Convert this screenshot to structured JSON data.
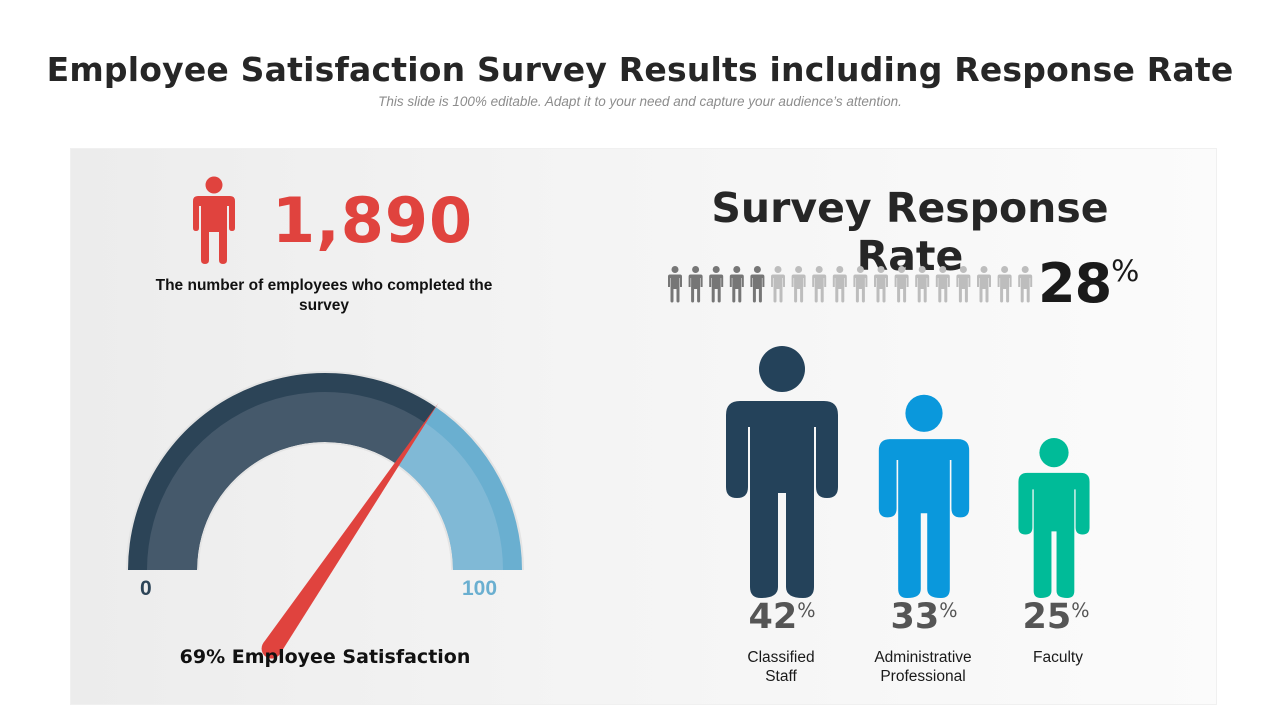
{
  "header": {
    "title": "Employee Satisfaction Survey Results including Response Rate",
    "subtitle": "This slide is 100% editable. Adapt it to your need and capture your audience’s attention."
  },
  "completed": {
    "count": "1,890",
    "label": "The number of employees who completed the survey",
    "icon": "person-icon",
    "color": "#e0433e"
  },
  "colors": {
    "gauge_dark": "#2c4457",
    "gauge_light": "#6aafd0",
    "needle": "#e0433e",
    "icon_active": "#767676",
    "icon_inactive": "#bdbdbd",
    "classified_staff": "#24425a",
    "administrative_professional": "#0a98dc",
    "faculty": "#00bb98"
  },
  "chart_data": [
    {
      "type": "gauge",
      "min_label": "0",
      "max_label": "100",
      "range": [
        0,
        100
      ],
      "value": 69,
      "label": "69% Employee Satisfaction"
    },
    {
      "type": "pictograph",
      "title": "Survey Response Rate",
      "value": 28,
      "value_text": "28",
      "unit": "%",
      "total_icons": 18,
      "filled_icons": 5
    },
    {
      "type": "pictograph-bar",
      "categories": [
        "Classified Staff",
        "Administrative Professional",
        "Faculty"
      ],
      "label_lines": [
        [
          "Classified",
          "Staff"
        ],
        [
          "Administrative",
          "Professional"
        ],
        [
          "Faculty"
        ]
      ],
      "values": [
        42,
        33,
        25
      ],
      "value_texts": [
        "42",
        "33",
        "25"
      ],
      "unit": "%"
    }
  ]
}
